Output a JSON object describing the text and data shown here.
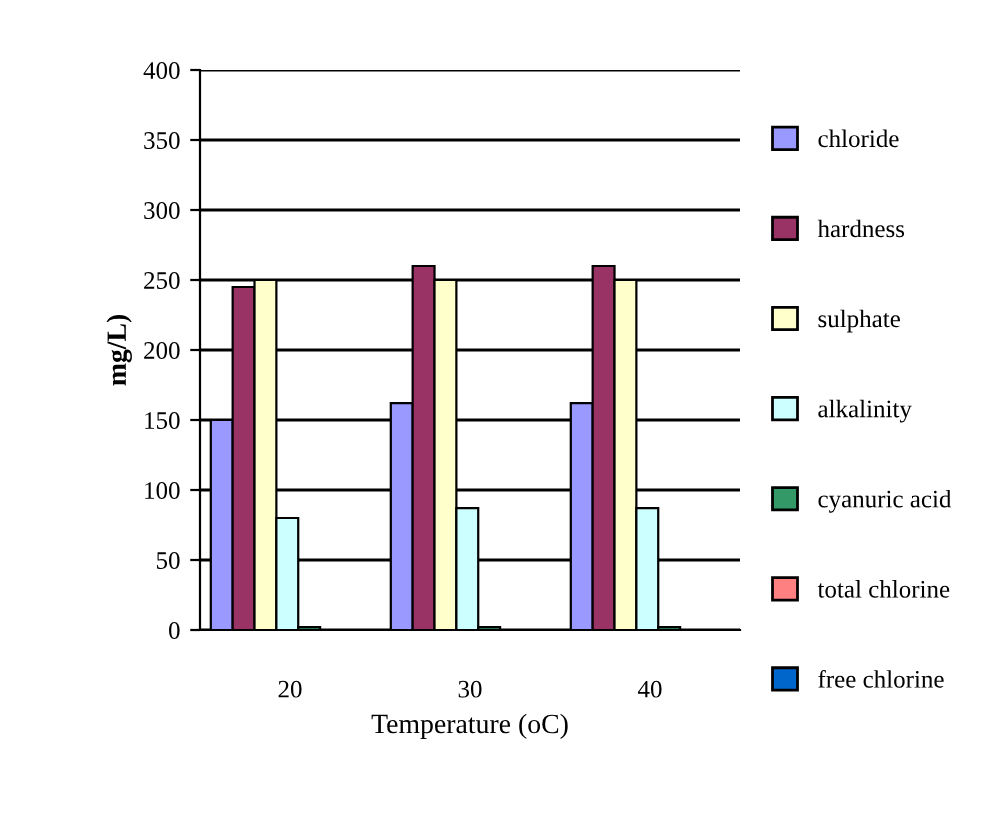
{
  "chart_data": {
    "type": "bar",
    "xlabel": "Temperature (oC)",
    "ylabel": "mg/L)",
    "categories": [
      "20",
      "30",
      "40"
    ],
    "series": [
      {
        "name": "chloride",
        "color": "#9999ff",
        "values": [
          150,
          162,
          162
        ]
      },
      {
        "name": "hardness",
        "color": "#993366",
        "values": [
          245,
          260,
          260
        ]
      },
      {
        "name": "sulphate",
        "color": "#ffffcc",
        "values": [
          250,
          250,
          250
        ]
      },
      {
        "name": "alkalinity",
        "color": "#ccffff",
        "values": [
          80,
          87,
          87
        ]
      },
      {
        "name": "cyanuric acid",
        "color": "#339966",
        "values": [
          2,
          2,
          2
        ]
      },
      {
        "name": "total chlorine",
        "color": "#ff8080",
        "values": [
          null,
          null,
          null
        ]
      },
      {
        "name": "free chlorine",
        "color": "#0066cc",
        "values": [
          null,
          null,
          null
        ]
      }
    ],
    "ylim": [
      0,
      400
    ],
    "yticks": [
      0,
      50,
      100,
      150,
      200,
      250,
      300,
      350,
      400
    ],
    "grid": "y",
    "legend": "right"
  }
}
